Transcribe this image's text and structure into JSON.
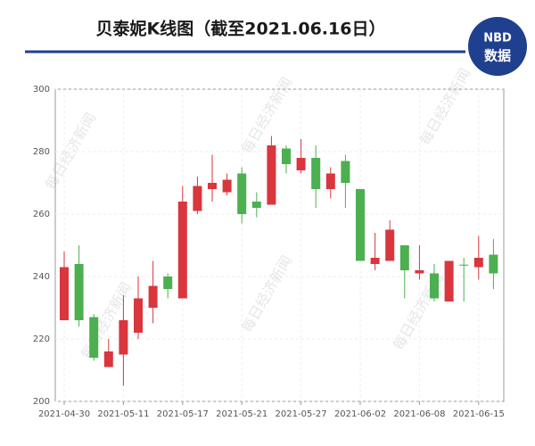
{
  "chart_data": {
    "type": "candlestick",
    "title": "贝泰妮K线图（截至2021.06.16日）",
    "logo": {
      "top": "NBD",
      "bottom": "数据"
    },
    "watermark": "每日经济新闻",
    "categories": [
      "2021-04-30",
      null,
      null,
      null,
      "2021-05-11",
      null,
      null,
      null,
      "2021-05-17",
      null,
      null,
      null,
      "2021-05-21",
      null,
      null,
      null,
      "2021-05-27",
      null,
      null,
      null,
      "2021-06-02",
      null,
      null,
      null,
      "2021-06-08",
      null,
      null,
      null,
      "2021-06-15",
      null
    ],
    "open": [
      226,
      244,
      227,
      211,
      215,
      222,
      230,
      240,
      233,
      261,
      268,
      267,
      273,
      264,
      263,
      281,
      274,
      278,
      268,
      277,
      268,
      244,
      245,
      250,
      241,
      241,
      232,
      243.8,
      243,
      247
    ],
    "high": [
      248,
      250,
      228,
      220,
      234,
      240,
      245,
      241,
      269,
      272,
      279,
      273,
      275,
      267,
      285,
      282,
      284,
      282,
      275,
      279,
      268,
      254,
      258,
      250,
      250,
      244,
      245,
      246,
      253,
      252
    ],
    "low": [
      226,
      224,
      213,
      211,
      205,
      220,
      225,
      233,
      233,
      260,
      264,
      266,
      257,
      259,
      263,
      273,
      273,
      262,
      265,
      262,
      245,
      242,
      245,
      233,
      239,
      232,
      232,
      232,
      239,
      236
    ],
    "close": [
      243,
      226,
      214,
      216,
      226,
      233,
      237,
      236,
      264,
      269,
      270,
      271,
      260,
      262,
      282,
      276,
      278,
      268,
      273,
      270,
      245,
      246,
      255,
      242,
      242,
      233,
      245,
      243.5,
      246,
      241
    ],
    "up_color": "#d9363e",
    "down_color": "#4caf50",
    "ylim": [
      200,
      300
    ],
    "yticks": [
      200,
      220,
      240,
      260,
      280,
      300
    ],
    "grid": true
  }
}
